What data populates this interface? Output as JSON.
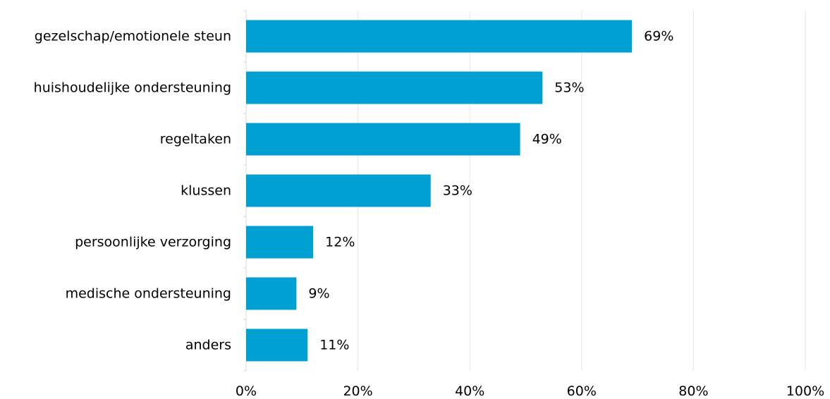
{
  "chart_data": {
    "type": "bar",
    "orientation": "horizontal",
    "categories": [
      "gezelschap/emotionele steun",
      "huishoudelijke ondersteuning",
      "regeltaken",
      "klussen",
      "persoonlijke verzorging",
      "medische ondersteuning",
      "anders"
    ],
    "values": [
      69,
      53,
      49,
      33,
      12,
      9,
      11
    ],
    "value_labels": [
      "69%",
      "53%",
      "49%",
      "33%",
      "12%",
      "9%",
      "11%"
    ],
    "xlim": [
      0,
      100
    ],
    "x_ticks": [
      0,
      20,
      40,
      60,
      80,
      100
    ],
    "x_tick_labels": [
      "0%",
      "20%",
      "40%",
      "60%",
      "80%",
      "100%"
    ],
    "title": "",
    "xlabel": "",
    "ylabel": "",
    "grid": "vertical",
    "legend": "none",
    "colors": {
      "bar": "#00a0d2",
      "grid": "#e6e6e6",
      "axis": "#d9d9d9",
      "text": "#000000"
    }
  }
}
